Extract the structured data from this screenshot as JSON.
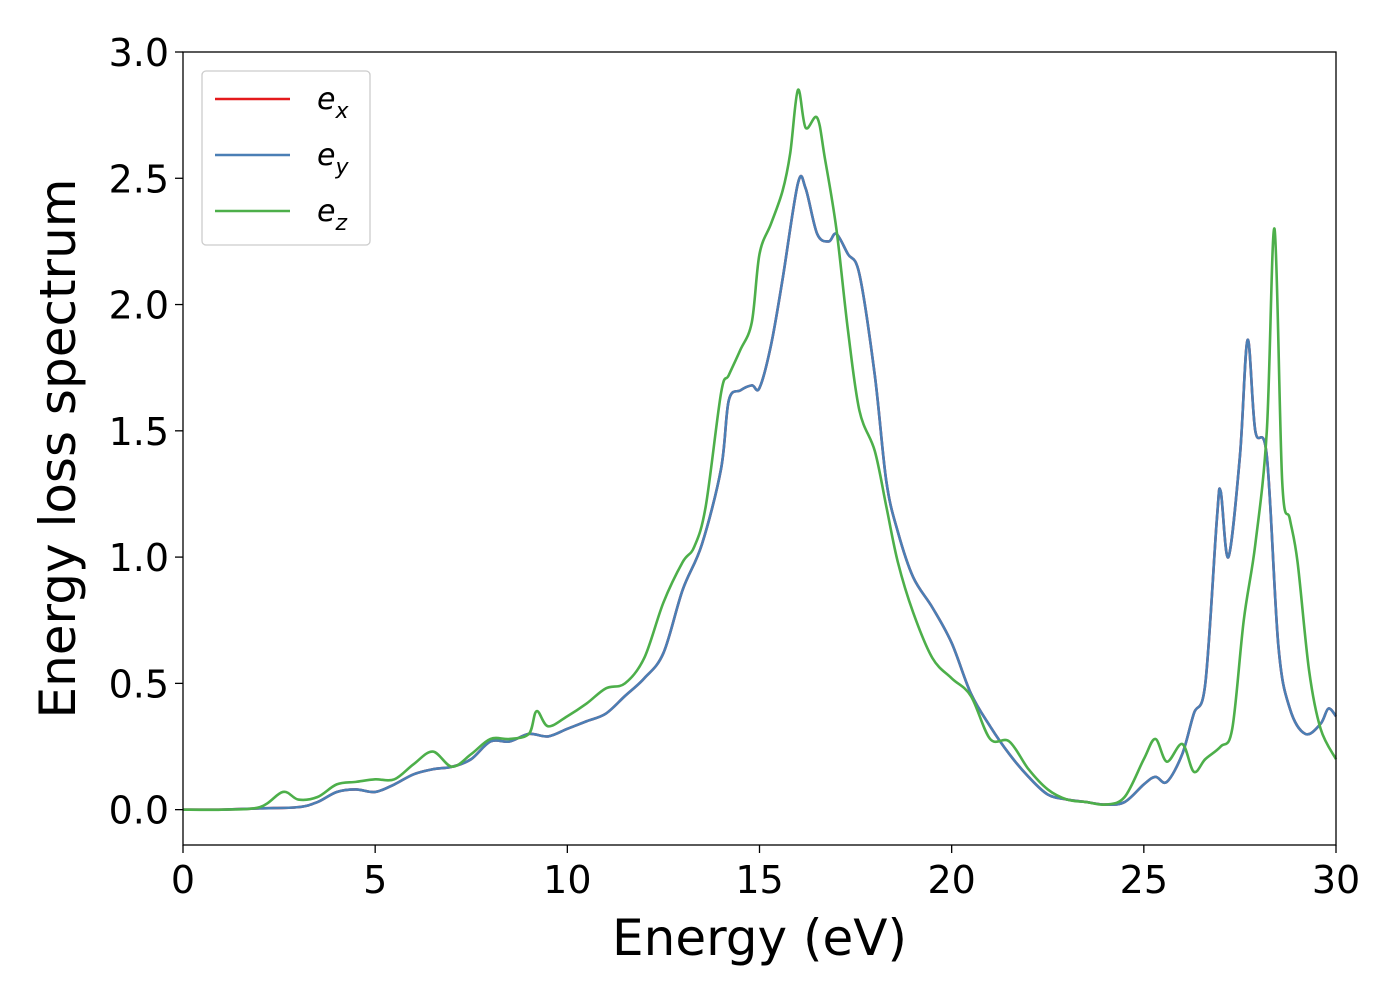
{
  "chart_data": {
    "type": "line",
    "xlabel": "Energy (eV)",
    "ylabel": "Energy loss spectrum",
    "xlim": [
      0,
      30
    ],
    "ylim": [
      -0.14,
      3.0
    ],
    "xticks": [
      0,
      5,
      10,
      15,
      20,
      25,
      30
    ],
    "xtick_labels": [
      "0",
      "5",
      "10",
      "15",
      "20",
      "25",
      "30"
    ],
    "yticks": [
      0.0,
      0.5,
      1.0,
      1.5,
      2.0,
      2.5,
      3.0
    ],
    "ytick_labels": [
      "0.0",
      "0.5",
      "1.0",
      "1.5",
      "2.0",
      "2.5",
      "3.0"
    ],
    "grid": false,
    "legend_position": "top-left",
    "series": [
      {
        "name": "e",
        "subscript": "x",
        "color": "#e41a1c",
        "x": [
          0,
          1,
          2,
          3,
          3.5,
          4,
          4.5,
          5,
          5.5,
          6,
          6.5,
          7,
          7.5,
          8,
          8.5,
          9,
          9.5,
          10,
          10.5,
          11,
          11.5,
          12,
          12.5,
          13,
          13.5,
          14,
          14.2,
          14.5,
          14.8,
          15,
          15.3,
          15.6,
          16,
          16.2,
          16.5,
          16.8,
          17,
          17.3,
          17.6,
          18,
          18.3,
          18.6,
          19,
          19.5,
          20,
          20.5,
          21,
          21.5,
          22,
          22.5,
          23,
          23.5,
          24,
          24.5,
          25,
          25.3,
          25.6,
          26,
          26.3,
          26.6,
          26.9,
          27,
          27.2,
          27.5,
          27.7,
          27.9,
          28.2,
          28.5,
          28.8,
          29.2,
          29.6,
          29.8,
          30
        ],
        "y": [
          0.0,
          0.0,
          0.005,
          0.01,
          0.03,
          0.07,
          0.08,
          0.07,
          0.1,
          0.14,
          0.16,
          0.17,
          0.2,
          0.27,
          0.27,
          0.3,
          0.29,
          0.32,
          0.35,
          0.38,
          0.45,
          0.52,
          0.62,
          0.87,
          1.05,
          1.35,
          1.62,
          1.66,
          1.68,
          1.67,
          1.84,
          2.1,
          2.48,
          2.46,
          2.28,
          2.25,
          2.28,
          2.2,
          2.12,
          1.72,
          1.3,
          1.1,
          0.92,
          0.8,
          0.66,
          0.46,
          0.33,
          0.22,
          0.13,
          0.06,
          0.04,
          0.03,
          0.02,
          0.03,
          0.1,
          0.13,
          0.11,
          0.22,
          0.38,
          0.5,
          1.15,
          1.26,
          1.0,
          1.4,
          1.86,
          1.5,
          1.4,
          0.65,
          0.4,
          0.3,
          0.34,
          0.4,
          0.37
        ]
      },
      {
        "name": "e",
        "subscript": "y",
        "color": "#4a7fb5",
        "x": [
          0,
          1,
          2,
          3,
          3.5,
          4,
          4.5,
          5,
          5.5,
          6,
          6.5,
          7,
          7.5,
          8,
          8.5,
          9,
          9.5,
          10,
          10.5,
          11,
          11.5,
          12,
          12.5,
          13,
          13.5,
          14,
          14.2,
          14.5,
          14.8,
          15,
          15.3,
          15.6,
          16,
          16.2,
          16.5,
          16.8,
          17,
          17.3,
          17.6,
          18,
          18.3,
          18.6,
          19,
          19.5,
          20,
          20.5,
          21,
          21.5,
          22,
          22.5,
          23,
          23.5,
          24,
          24.5,
          25,
          25.3,
          25.6,
          26,
          26.3,
          26.6,
          26.9,
          27,
          27.2,
          27.5,
          27.7,
          27.9,
          28.2,
          28.5,
          28.8,
          29.2,
          29.6,
          29.8,
          30
        ],
        "y": [
          0.0,
          0.0,
          0.005,
          0.01,
          0.03,
          0.07,
          0.08,
          0.07,
          0.1,
          0.14,
          0.16,
          0.17,
          0.2,
          0.27,
          0.27,
          0.3,
          0.29,
          0.32,
          0.35,
          0.38,
          0.45,
          0.52,
          0.62,
          0.87,
          1.05,
          1.35,
          1.62,
          1.66,
          1.68,
          1.67,
          1.84,
          2.1,
          2.48,
          2.46,
          2.28,
          2.25,
          2.28,
          2.2,
          2.12,
          1.72,
          1.3,
          1.1,
          0.92,
          0.8,
          0.66,
          0.46,
          0.33,
          0.22,
          0.13,
          0.06,
          0.04,
          0.03,
          0.02,
          0.03,
          0.1,
          0.13,
          0.11,
          0.22,
          0.38,
          0.5,
          1.15,
          1.26,
          1.0,
          1.4,
          1.86,
          1.5,
          1.4,
          0.65,
          0.4,
          0.3,
          0.34,
          0.4,
          0.37
        ]
      },
      {
        "name": "e",
        "subscript": "z",
        "color": "#4daf4a",
        "x": [
          0,
          1,
          2,
          2.6,
          3,
          3.5,
          4,
          4.5,
          5,
          5.5,
          6,
          6.5,
          7,
          7.5,
          8,
          8.5,
          9,
          9.2,
          9.5,
          10,
          10.5,
          11,
          11.5,
          12,
          12.5,
          13,
          13.3,
          13.6,
          14,
          14.2,
          14.5,
          14.8,
          15,
          15.3,
          15.6,
          15.8,
          16,
          16.2,
          16.5,
          16.7,
          17,
          17.3,
          17.6,
          18,
          18.3,
          18.6,
          19,
          19.5,
          20,
          20.5,
          21,
          21.5,
          22,
          22.5,
          23,
          23.5,
          24,
          24.5,
          25,
          25.3,
          25.6,
          26,
          26.3,
          26.6,
          27,
          27.3,
          27.6,
          27.9,
          28.2,
          28.4,
          28.6,
          28.8,
          29,
          29.3,
          29.6,
          30
        ],
        "y": [
          0.0,
          0.0,
          0.01,
          0.07,
          0.04,
          0.05,
          0.1,
          0.11,
          0.12,
          0.12,
          0.18,
          0.23,
          0.17,
          0.22,
          0.28,
          0.28,
          0.3,
          0.39,
          0.33,
          0.37,
          0.42,
          0.48,
          0.5,
          0.6,
          0.82,
          0.98,
          1.04,
          1.2,
          1.65,
          1.72,
          1.82,
          1.93,
          2.2,
          2.32,
          2.45,
          2.6,
          2.85,
          2.7,
          2.74,
          2.58,
          2.3,
          1.9,
          1.58,
          1.42,
          1.2,
          0.98,
          0.78,
          0.6,
          0.52,
          0.45,
          0.28,
          0.27,
          0.16,
          0.08,
          0.04,
          0.03,
          0.02,
          0.05,
          0.2,
          0.28,
          0.19,
          0.26,
          0.15,
          0.2,
          0.25,
          0.32,
          0.75,
          1.05,
          1.5,
          2.3,
          1.3,
          1.15,
          0.98,
          0.55,
          0.32,
          0.2
        ]
      }
    ]
  }
}
